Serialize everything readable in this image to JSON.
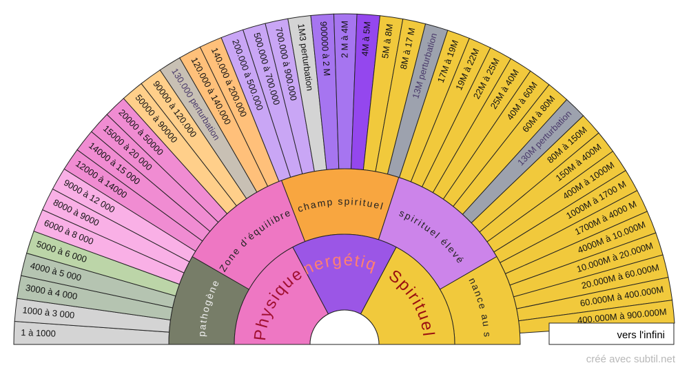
{
  "footer": {
    "credit": "créé avec subtil.net"
  },
  "outer_end_label": "vers l'infini",
  "colors": {
    "outline": "#222222",
    "grey": "#d4d4d4",
    "sage": "#b5c4b1",
    "green": "#bcd5a8",
    "light_pink": "#f9b0e6",
    "pink": "#f08cd2",
    "tan": "#c8c0b4",
    "light_orange": "#ffcf8a",
    "orange": "#ffc07a",
    "lavender": "#c9a6f5",
    "purple": "#a675f0",
    "violet": "#9447ee",
    "yellow": "#f1c93c",
    "slate": "#9da2ae",
    "dark_olive": "#777d68",
    "magenta": "#ee77c3",
    "deep_purple": "#9b56e6",
    "orange_mid": "#f8a640",
    "mauve": "#cc84ea"
  },
  "outer_ring": [
    {
      "label": "1 à 1000",
      "color": "grey"
    },
    {
      "label": "1000 à 3 000",
      "color": "grey"
    },
    {
      "label": "3000 à 4 000",
      "color": "sage"
    },
    {
      "label": "4000 à 5 000",
      "color": "sage"
    },
    {
      "label": "5000 à 6 000",
      "color": "green"
    },
    {
      "label": "6000 à 8 000",
      "color": "light_pink"
    },
    {
      "label": "8000 à 9000",
      "color": "light_pink"
    },
    {
      "label": "9000 à 12 000",
      "color": "light_pink"
    },
    {
      "label": "12000 à 14000",
      "color": "pink"
    },
    {
      "label": "14000 à 15 000",
      "color": "pink"
    },
    {
      "label": "15000 à 20 000",
      "color": "pink"
    },
    {
      "label": "20000 à 50000",
      "color": "pink"
    },
    {
      "label": "50000 à 90000",
      "color": "light_orange"
    },
    {
      "label": "90000 à 120.000",
      "color": "light_orange"
    },
    {
      "label": "130.000 perturbation",
      "color": "tan"
    },
    {
      "label": "120.000 à 140.000",
      "color": "orange"
    },
    {
      "label": "140.000 à 200.000",
      "color": "orange"
    },
    {
      "label": "200.000 à 500.000",
      "color": "lavender"
    },
    {
      "label": "500.000 à 700.000",
      "color": "lavender"
    },
    {
      "label": "700.000 à 900.000",
      "color": "lavender"
    },
    {
      "label": "1M3  perturbation",
      "color": "grey"
    },
    {
      "label": "900000 à 2 M",
      "color": "purple"
    },
    {
      "label": "2 M à 4M",
      "color": "purple"
    },
    {
      "label": "4M à 5M",
      "color": "violet"
    },
    {
      "label": "5M à 8M",
      "color": "yellow"
    },
    {
      "label": "8M à 17 M",
      "color": "yellow"
    },
    {
      "label": "13M perturbation",
      "color": "slate"
    },
    {
      "label": "17M à 19M",
      "color": "yellow"
    },
    {
      "label": "19M à 22M",
      "color": "yellow"
    },
    {
      "label": "22M à 25M",
      "color": "yellow"
    },
    {
      "label": "25M à 40M",
      "color": "yellow"
    },
    {
      "label": "40M à 60M",
      "color": "yellow"
    },
    {
      "label": "60M à 80M",
      "color": "yellow"
    },
    {
      "label": "130M perturbation",
      "color": "slate"
    },
    {
      "label": "80M à 150M",
      "color": "yellow"
    },
    {
      "label": "150M à 400M",
      "color": "yellow"
    },
    {
      "label": "400M à 1000M",
      "color": "yellow"
    },
    {
      "label": "1000M à 1700 M",
      "color": "yellow"
    },
    {
      "label": "1700M à 4000 M",
      "color": "yellow"
    },
    {
      "label": "4000M à 10.000M",
      "color": "yellow"
    },
    {
      "label": "10.000M à 20.000M",
      "color": "yellow"
    },
    {
      "label": "20.000M à 60.000M",
      "color": "yellow"
    },
    {
      "label": "60.000M à 400.000M",
      "color": "yellow"
    },
    {
      "label": "400.000M à 900.000M",
      "color": "yellow"
    }
  ],
  "middle_ring": [
    {
      "label": "pathogène",
      "color": "dark_olive",
      "text_color": "#f0f0f0"
    },
    {
      "label": "Zone d'équilibre",
      "color": "magenta",
      "text_color": "#222222"
    },
    {
      "label": "champ spirituel",
      "color": "orange_mid",
      "text_color": "#222222"
    },
    {
      "label": "spirituel élevé",
      "color": "mauve",
      "text_color": "#222222"
    },
    {
      "label": "résonance au sacré",
      "color": "yellow",
      "text_color": "#222222"
    }
  ],
  "inner_ring": [
    {
      "label": "Physique",
      "color": "magenta",
      "text_color": "#a01030"
    },
    {
      "label": "Energétique",
      "color": "deep_purple",
      "text_color": "#ff8070"
    },
    {
      "label": "Spirituel",
      "color": "yellow",
      "text_color": "#9a1010"
    }
  ]
}
